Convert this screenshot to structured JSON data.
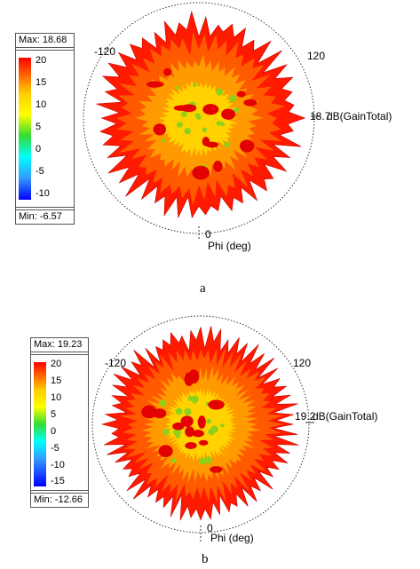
{
  "chart_data": [
    {
      "type": "radiation-pattern-3d",
      "caption": "a",
      "quantity_label": "dB(GainTotal)",
      "legend": {
        "max_label": "Max: 18.68",
        "min_label": "Min: -6.57",
        "max": 18.68,
        "min": -6.57,
        "ticks": [
          "20",
          "15",
          "10",
          "5",
          "0",
          "-5",
          "-10"
        ],
        "colors": [
          "#ff0000",
          "#ff8800",
          "#ffff00",
          "#33dd33",
          "#00ffff",
          "#3399ff",
          "#0000ff"
        ]
      },
      "scale_value_label": "18.7",
      "angle_labels": {
        "left": "-120",
        "right": "120",
        "bottom": "0"
      },
      "axis_label": "Phi (deg)"
    },
    {
      "type": "radiation-pattern-3d",
      "caption": "b",
      "quantity_label": "dB(GainTotal)",
      "legend": {
        "max_label": "Max: 19.23",
        "min_label": "Min: -12.66",
        "max": 19.23,
        "min": -12.66,
        "ticks": [
          "20",
          "15",
          "10",
          "5",
          "0",
          "-5",
          "-10",
          "-15"
        ],
        "colors": [
          "#ff0000",
          "#ff8800",
          "#ffff00",
          "#33dd33",
          "#00ffff",
          "#3399ff",
          "#0000ff"
        ]
      },
      "scale_value_label": "19.2",
      "angle_labels": {
        "left": "-120",
        "right": "120",
        "bottom": "0"
      },
      "axis_label": "Phi (deg)"
    }
  ]
}
